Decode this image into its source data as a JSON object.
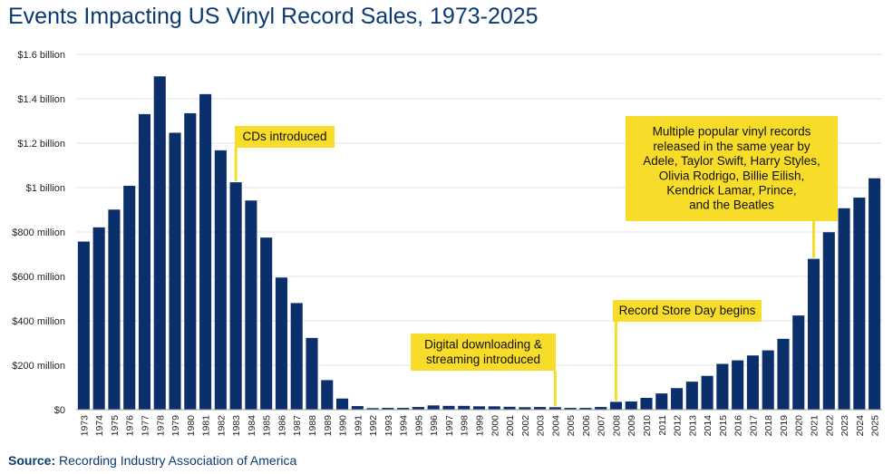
{
  "title": "Events Impacting US Vinyl Record Sales, 1973-2025",
  "source": {
    "label": "Source:",
    "text": "Recording Industry Association of America"
  },
  "colors": {
    "bar": "#0a2f6b",
    "title": "#0b3a73",
    "annotation_bg": "#f7dc2a",
    "grid": "#e3e3e3"
  },
  "chart_data": {
    "type": "bar",
    "categories": [
      "1973",
      "1974",
      "1975",
      "1976",
      "1977",
      "1978",
      "1979",
      "1980",
      "1981",
      "1982",
      "1983",
      "1984",
      "1985",
      "1986",
      "1987",
      "1988",
      "1989",
      "1990",
      "1991",
      "1992",
      "1993",
      "1994",
      "1995",
      "1996",
      "1997",
      "1998",
      "1999",
      "2000",
      "2001",
      "2002",
      "2003",
      "2004",
      "2005",
      "2006",
      "2007",
      "2008",
      "2009",
      "2010",
      "2011",
      "2012",
      "2013",
      "2014",
      "2015",
      "2016",
      "2017",
      "2018",
      "2019",
      "2020",
      "2021",
      "2022",
      "2023",
      "2024",
      "2025"
    ],
    "values": [
      0.757,
      0.821,
      0.901,
      1.008,
      1.331,
      1.501,
      1.247,
      1.335,
      1.421,
      1.168,
      1.024,
      0.942,
      0.775,
      0.595,
      0.48,
      0.323,
      0.133,
      0.05,
      0.016,
      0.007,
      0.008,
      0.008,
      0.012,
      0.019,
      0.017,
      0.017,
      0.015,
      0.015,
      0.013,
      0.011,
      0.012,
      0.011,
      0.008,
      0.008,
      0.012,
      0.035,
      0.037,
      0.053,
      0.073,
      0.097,
      0.126,
      0.152,
      0.206,
      0.222,
      0.244,
      0.267,
      0.319,
      0.424,
      0.679,
      0.799,
      0.907,
      0.955,
      1.042
    ],
    "units": "USD billions",
    "ylim": [
      0,
      1.6
    ],
    "yticks": [
      {
        "value": 0,
        "label": "$0"
      },
      {
        "value": 0.2,
        "label": "$200 million"
      },
      {
        "value": 0.4,
        "label": "$400 million"
      },
      {
        "value": 0.6,
        "label": "$600 million"
      },
      {
        "value": 0.8,
        "label": "$800 million"
      },
      {
        "value": 1.0,
        "label": "$1 billion"
      },
      {
        "value": 1.2,
        "label": "$1.2 billion"
      },
      {
        "value": 1.4,
        "label": "$1.4 billion"
      },
      {
        "value": 1.6,
        "label": "$1.6 billion"
      }
    ],
    "grid": true,
    "annotations": [
      {
        "year": "1983",
        "lines": [
          "CDs introduced"
        ]
      },
      {
        "year": "2004",
        "lines": [
          "Digital downloading &",
          "streaming introduced"
        ]
      },
      {
        "year": "2008",
        "lines": [
          "Record Store Day begins"
        ]
      },
      {
        "year": "2021",
        "lines": [
          "Multiple popular vinyl records",
          "released in the same year by",
          "Adele, Taylor Swift, Harry Styles,",
          "Olivia Rodrigo, Billie Eilish,",
          "Kendrick Lamar, Prince,",
          "and the Beatles"
        ]
      }
    ]
  }
}
